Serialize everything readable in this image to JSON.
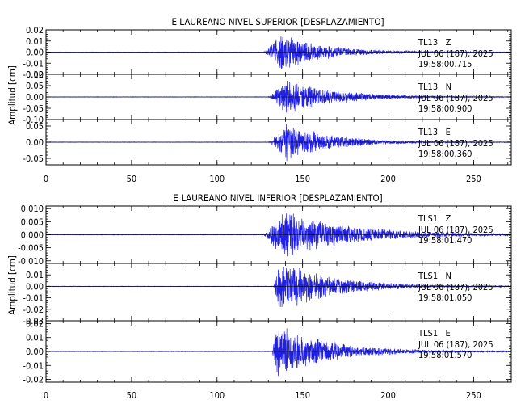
{
  "chart_data": [
    {
      "type": "line",
      "title": "E LAUREANO NIVEL SUPERIOR [DESPLAZAMIENTO]",
      "xlim": [
        0,
        272
      ],
      "xticks": [
        "0",
        "50",
        "100",
        "150",
        "200",
        "250"
      ],
      "ylabel": "Amplitud [cm]",
      "grid": false,
      "traces": [
        {
          "label": "TL13   Z",
          "info": [
            "JUL 06 (187), 2025",
            "19:58:00.715"
          ],
          "ylim": [
            -0.02,
            0.02
          ],
          "yticks": [
            "0.02",
            "0.01",
            "0.00",
            "-0.01",
            "-0.02"
          ],
          "color": "#1f1fe6",
          "onset": 127,
          "peak_time": 137,
          "peak_amplitude": 0.019,
          "decay": 25,
          "noise": 0.0002,
          "seed": 11
        },
        {
          "label": "TL13   N",
          "info": [
            "JUL 06 (187), 2025",
            "19:58:00.900"
          ],
          "ylim": [
            -0.1,
            0.1
          ],
          "yticks": [
            "0.10",
            "0.05",
            "0.00",
            "-0.05",
            "-0.10"
          ],
          "color": "#1f1fe6",
          "onset": 130,
          "peak_time": 140,
          "peak_amplitude": 0.088,
          "decay": 28,
          "noise": 0.001,
          "seed": 23
        },
        {
          "label": "TL13   E",
          "info": [
            "JUL 06 (187), 2025",
            "19:58:00.360"
          ],
          "ylim": [
            -0.07,
            0.07
          ],
          "yticks": [
            "0.05",
            "0.00",
            "-0.05"
          ],
          "color": "#1f1fe6",
          "onset": 130,
          "peak_time": 140,
          "peak_amplitude": 0.065,
          "decay": 26,
          "noise": 0.0008,
          "seed": 37
        }
      ]
    },
    {
      "type": "line",
      "title": "E LAUREANO NIVEL INFERIOR [DESPLAZAMIENTO]",
      "xlim": [
        0,
        272
      ],
      "xticks": [
        "0",
        "50",
        "100",
        "150",
        "200",
        "250"
      ],
      "ylabel": "Amplitud [cm]",
      "grid": false,
      "traces": [
        {
          "label": "TLS1   Z",
          "info": [
            "JUL 06 (187), 2025",
            "19:58:01.470"
          ],
          "ylim": [
            -0.011,
            0.011
          ],
          "yticks": [
            "0.010",
            "0.005",
            "0.000",
            "-0.005",
            "-0.010"
          ],
          "color": "#1f1fe6",
          "onset": 127,
          "peak_time": 138,
          "peak_amplitude": 0.0105,
          "decay": 38,
          "noise": 0.0001,
          "seed": 51
        },
        {
          "label": "TLS1   N",
          "info": [
            "JUL 06 (187), 2025",
            "19:58:01.050"
          ],
          "ylim": [
            -0.03,
            0.02
          ],
          "yticks": [
            "0.01",
            "0.00",
            "-0.01",
            "-0.02",
            "-0.03"
          ],
          "color": "#1f1fe6",
          "onset": 133,
          "peak_time": 136,
          "peak_amplitude": 0.026,
          "decay": 30,
          "noise": 0.0002,
          "seed": 67
        },
        {
          "label": "TLS1   E",
          "info": [
            "JUL 06 (187), 2025",
            "19:58:01.570"
          ],
          "ylim": [
            -0.022,
            0.022
          ],
          "yticks": [
            "0.02",
            "0.01",
            "0.00",
            "-0.01",
            "-0.02"
          ],
          "color": "#1f1fe6",
          "onset": 132,
          "peak_time": 135,
          "peak_amplitude": 0.021,
          "decay": 30,
          "noise": 0.0002,
          "seed": 83
        }
      ]
    }
  ]
}
